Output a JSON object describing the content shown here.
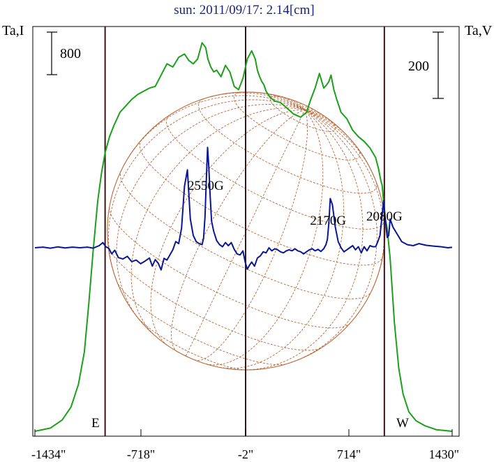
{
  "chart_data": {
    "type": "line",
    "title": "sun: 2011/09/17: 2.14[cm]",
    "left_axis_label": "Ta,I",
    "right_axis_label": "Ta,V",
    "left_scale_bar_value": "800",
    "right_scale_bar_value": "200",
    "east_label": "E",
    "west_label": "W",
    "x_ticks": [
      {
        "value": -1434,
        "label": "-1434\""
      },
      {
        "value": -718,
        "label": "-718\""
      },
      {
        "value": -2,
        "label": "-2\""
      },
      {
        "value": 714,
        "label": "714\""
      },
      {
        "value": 1430,
        "label": "1430\""
      }
    ],
    "xlim": [
      -1434,
      1430
    ],
    "vertical_markers": [
      -960,
      -2,
      960
    ],
    "disk_radius_arcsec": 955,
    "annotations": [
      {
        "text": "2550G",
        "x": -275
      },
      {
        "text": "2170G",
        "x": 570
      },
      {
        "text": "2080G",
        "x": 960
      }
    ],
    "colors": {
      "title": "#1a237e",
      "intensity": "#1aa01a",
      "polarization": "#0a1696",
      "grid": "#b8683a",
      "marker": "#3a1515",
      "axis": "#000000"
    },
    "series": [
      {
        "name": "Ta,I",
        "ylim": [
          0,
          2530
        ],
        "x": [
          -1434,
          -1330,
          -1250,
          -1190,
          -1140,
          -1100,
          -1070,
          -1040,
          -1010,
          -985,
          -960,
          -930,
          -900,
          -860,
          -820,
          -780,
          -740,
          -700,
          -660,
          -620,
          -580,
          -540,
          -500,
          -460,
          -420,
          -390,
          -360,
          -330,
          -300,
          -275,
          -260,
          -240,
          -220,
          -200,
          -170,
          -140,
          -110,
          -80,
          -50,
          -20,
          10,
          40,
          65,
          80,
          95,
          110,
          125,
          140,
          170,
          200,
          240,
          280,
          330,
          380,
          420,
          450,
          480,
          510,
          540,
          560,
          575,
          590,
          610,
          630,
          660,
          700,
          740,
          780,
          820,
          860,
          900,
          920,
          935,
          945,
          955,
          965,
          980,
          1000,
          1030,
          1060,
          1090,
          1130,
          1180,
          1240,
          1320,
          1430
        ],
        "y": [
          30,
          50,
          100,
          180,
          320,
          520,
          820,
          1150,
          1450,
          1620,
          1750,
          1850,
          1920,
          2000,
          2040,
          2080,
          2110,
          2130,
          2150,
          2160,
          2230,
          2300,
          2280,
          2340,
          2360,
          2320,
          2300,
          2330,
          2430,
          2400,
          2330,
          2280,
          2250,
          2260,
          2220,
          2290,
          2250,
          2160,
          2140,
          2210,
          2330,
          2380,
          2330,
          2260,
          2220,
          2190,
          2170,
          2130,
          2090,
          2070,
          2060,
          2030,
          1990,
          1970,
          2000,
          2080,
          2150,
          2240,
          2150,
          2170,
          2190,
          2230,
          2140,
          2080,
          2000,
          1960,
          1890,
          1850,
          1820,
          1780,
          1720,
          1650,
          1580,
          1550,
          1450,
          1350,
          1280,
          1100,
          700,
          420,
          260,
          150,
          95,
          65,
          40,
          30
        ]
      },
      {
        "name": "Ta,V",
        "ylim": [
          -920,
          1080
        ],
        "x": [
          -1434,
          -1380,
          -1330,
          -1280,
          -1230,
          -1180,
          -1130,
          -1080,
          -1040,
          -1000,
          -975,
          -955,
          -935,
          -915,
          -895,
          -870,
          -840,
          -810,
          -780,
          -750,
          -720,
          -690,
          -660,
          -640,
          -620,
          -600,
          -580,
          -560,
          -540,
          -520,
          -500,
          -480,
          -460,
          -440,
          -420,
          -400,
          -380,
          -360,
          -340,
          -320,
          -300,
          -290,
          -280,
          -270,
          -262,
          -255,
          -245,
          -235,
          -220,
          -200,
          -180,
          -160,
          -140,
          -120,
          -100,
          -80,
          -60,
          -40,
          -20,
          -5,
          10,
          25,
          40,
          60,
          80,
          100,
          120,
          140,
          160,
          180,
          200,
          220,
          240,
          260,
          280,
          300,
          320,
          340,
          360,
          380,
          400,
          420,
          440,
          460,
          480,
          500,
          520,
          540,
          555,
          565,
          575,
          585,
          600,
          620,
          640,
          660,
          680,
          700,
          720,
          740,
          760,
          780,
          800,
          820,
          840,
          860,
          880,
          900,
          915,
          930,
          945,
          955,
          965,
          980,
          990,
          1000,
          1020,
          1050,
          1080,
          1120,
          1160,
          1200,
          1250,
          1300,
          1350,
          1400,
          1430
        ],
        "y": [
          0,
          3,
          -2,
          4,
          -1,
          3,
          0,
          3,
          -2,
          10,
          25,
          5,
          -3,
          -30,
          -12,
          -48,
          -55,
          -42,
          -68,
          -60,
          -78,
          -65,
          -50,
          -90,
          -58,
          -75,
          -108,
          -52,
          -60,
          -35,
          -10,
          30,
          20,
          95,
          300,
          380,
          140,
          60,
          30,
          20,
          15,
          45,
          150,
          350,
          490,
          410,
          260,
          130,
          80,
          35,
          15,
          5,
          25,
          10,
          25,
          -8,
          -30,
          -35,
          -15,
          -70,
          -105,
          -85,
          -70,
          -90,
          -50,
          -40,
          -20,
          -25,
          0,
          -15,
          -5,
          -10,
          -20,
          -25,
          -15,
          -10,
          -15,
          -5,
          -15,
          -20,
          -30,
          -20,
          -10,
          -5,
          -15,
          -8,
          -18,
          -5,
          15,
          40,
          120,
          240,
          210,
          100,
          30,
          0,
          -20,
          -10,
          0,
          10,
          -10,
          5,
          -25,
          5,
          -15,
          10,
          5,
          5,
          30,
          60,
          160,
          230,
          150,
          50,
          60,
          140,
          100,
          65,
          30,
          15,
          10,
          20,
          12,
          8,
          5,
          0,
          2
        ]
      }
    ]
  }
}
